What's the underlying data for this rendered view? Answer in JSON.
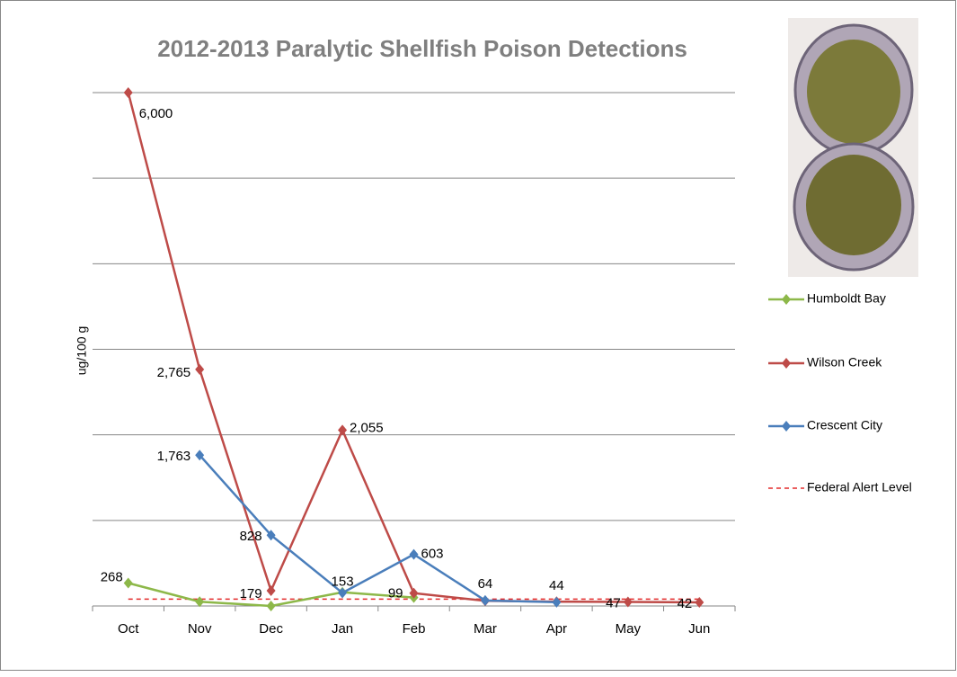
{
  "chart_data": {
    "type": "line",
    "title": "2012-2013 Paralytic Shellfish Poison Detections",
    "y_label": "ug/100 g",
    "categories": [
      "Oct",
      "Nov",
      "Dec",
      "Jan",
      "Feb",
      "Mar",
      "Apr",
      "May",
      "Jun"
    ],
    "series": [
      {
        "name": "Humboldt Bay",
        "color": "#8db849",
        "values": [
          268,
          50,
          0,
          160,
          99,
          null,
          null,
          null,
          null
        ],
        "value_labels": [
          "268",
          null,
          null,
          null,
          "99",
          null,
          null,
          null,
          null
        ]
      },
      {
        "name": "Wilson Creek",
        "color": "#be4b48",
        "values": [
          6000,
          2765,
          179,
          2055,
          150,
          60,
          50,
          47,
          42
        ],
        "value_labels": [
          "6,000",
          "2,765",
          "179",
          "2,055",
          null,
          null,
          null,
          "47",
          "42"
        ]
      },
      {
        "name": "Crescent City",
        "color": "#4a7ebb",
        "values": [
          null,
          1763,
          828,
          153,
          603,
          64,
          44,
          null,
          null
        ],
        "value_labels": [
          null,
          "1,763",
          "828",
          "153",
          "603",
          "64",
          "44",
          null,
          null
        ]
      }
    ],
    "alert_level": {
      "name": "Federal Alert Level",
      "value": 80,
      "color": "#e32b2b"
    },
    "ylim": [
      0,
      6000
    ],
    "yticks": [
      0,
      1000,
      2000,
      3000,
      4000,
      5000,
      6000
    ],
    "grid": true
  }
}
